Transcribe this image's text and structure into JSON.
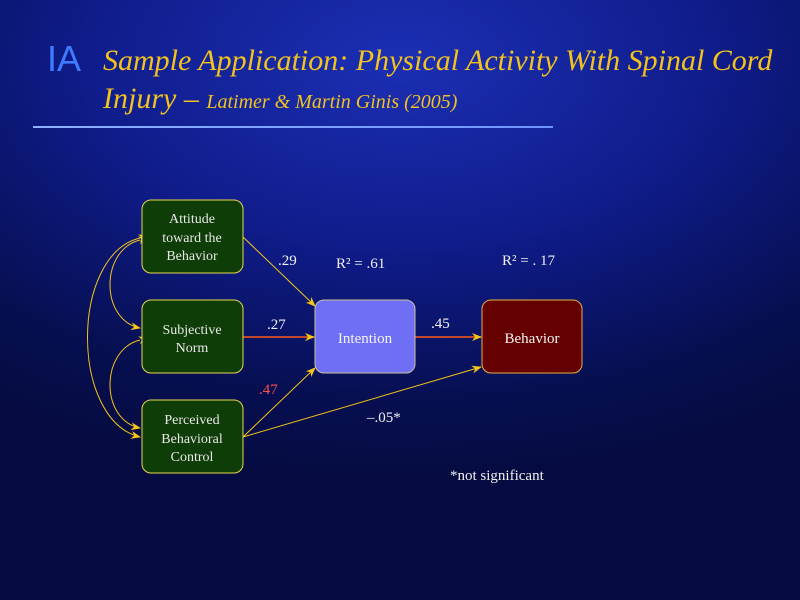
{
  "title": {
    "section": "IA",
    "main": "Sample Application: Physical Activity With Spinal Cord Injury –",
    "citation": "Latimer & Martin Ginis (2005)"
  },
  "diagram": {
    "nodes": {
      "attitude": [
        "Attitude",
        "toward the",
        "Behavior"
      ],
      "norm": [
        "Subjective",
        "Norm"
      ],
      "pbc": [
        "Perceived",
        "Behavioral",
        "Control"
      ],
      "intention": "Intention",
      "behavior": "Behavior"
    },
    "paths": {
      "attitude_intention": ".29",
      "norm_intention": ".27",
      "pbc_intention": ".47",
      "intention_behavior": ".45",
      "pbc_behavior": "–.05*"
    },
    "r2_intention": "R² = .61",
    "r2_behavior": "R² = . 17",
    "footnote": "*not significant"
  },
  "colors": {
    "title": "#f2c21e",
    "section": "#3d7cff",
    "predictor_box": "#0f3d08",
    "intention_box": "#6f6ff5",
    "behavior_box": "#640000",
    "arrow": "#f5c518",
    "strong_arrow": "#ff5a1a",
    "highlight_label": "#ff4d4d"
  }
}
